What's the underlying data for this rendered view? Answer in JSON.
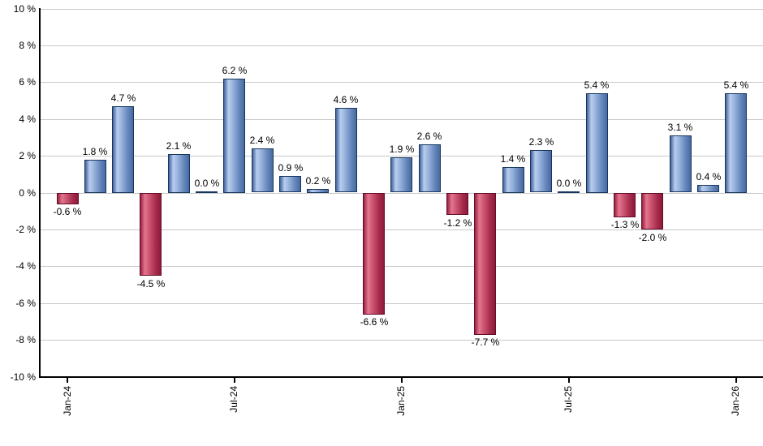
{
  "chart_data": {
    "type": "bar",
    "title": "",
    "legend": "none",
    "grid": "horizontal-only",
    "ylim": [
      -10,
      10
    ],
    "values": [
      -0.6,
      1.8,
      4.7,
      -4.5,
      2.1,
      0.0,
      6.2,
      2.4,
      0.9,
      0.2,
      4.6,
      -6.6,
      1.9,
      2.6,
      -1.2,
      -7.7,
      1.4,
      2.3,
      0.0,
      5.4,
      -1.3,
      -2.0,
      3.1,
      0.4,
      5.4
    ],
    "bar_labels": [
      "-0.6 %",
      "1.8 %",
      "4.7 %",
      "-4.5 %",
      "2.1 %",
      "0.0 %",
      "6.2 %",
      "2.4 %",
      "0.9 %",
      "0.2 %",
      "4.6 %",
      "-6.6 %",
      "1.9 %",
      "2.6 %",
      "-1.2 %",
      "-7.7 %",
      "1.4 %",
      "2.3 %",
      "0.0 %",
      "5.4 %",
      "-1.3 %",
      "-2.0 %",
      "3.1 %",
      "0.4 %",
      "5.4 %"
    ],
    "x_tick_labels": [
      "Jan-24",
      "Jul-24",
      "Jan-25",
      "Jul-25",
      "Jan-26"
    ],
    "x_tick_bar_indices": [
      0,
      6,
      12,
      18,
      24
    ],
    "y_tick_values": [
      10,
      8,
      6,
      4,
      2,
      0,
      -2,
      -4,
      -6,
      -8,
      -10
    ],
    "y_tick_labels": [
      "10 %",
      "8 %",
      "6 %",
      "4 %",
      "2 %",
      "0 %",
      "-2 %",
      "-4 %",
      "-6 %",
      "-8 %",
      "-10 %"
    ],
    "colors": {
      "positive_bar_light": "#b9cdee",
      "positive_bar_dark": "#40639b",
      "positive_bar_border": "#16365e",
      "negative_bar_light": "#e5768f",
      "negative_bar_dark": "#8c1a3a",
      "negative_bar_border": "#650d29",
      "gridline": "#c9c9c9",
      "axis": "#000000",
      "label_text": "#000000",
      "background": "#ffffff"
    }
  }
}
